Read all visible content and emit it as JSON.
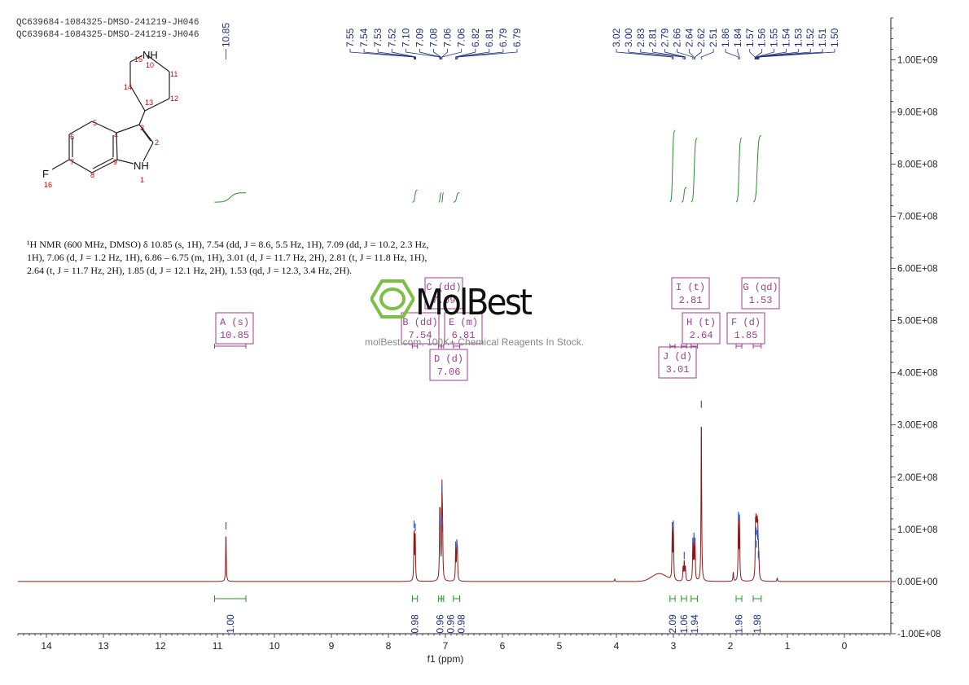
{
  "header": {
    "sample_line_1": "QC639684-1084325-DMSO-241219-JH046",
    "sample_line_2": "QC639684-1084325-DMSO-241219-JH046"
  },
  "description": {
    "line_1": "¹H NMR (600 MHz, DMSO) δ 10.85 (s, 1H), 7.54 (dd, J = 8.6, 5.5 Hz, 1H), 7.09 (dd, J = 10.2, 2.3 Hz,",
    "line_2": "1H), 7.06 (d, J = 1.2 Hz, 1H), 6.86 – 6.75 (m, 1H), 3.01 (d, J = 11.7 Hz, 2H), 2.81 (t, J = 11.8 Hz, 1H),",
    "line_3": "2.64 (t, J = 11.7 Hz, 2H), 1.85 (d, J = 12.1 Hz, 2H), 1.53 (qd, J = 12.3, 3.4 Hz, 2H)."
  },
  "watermark": {
    "brand": "MolBest",
    "tagline": "molBest.com, 100K+ Chemical Reagents In Stock."
  },
  "molecule": {
    "atoms": [
      {
        "symbol": "NH",
        "number": "10"
      },
      {
        "symbol": "NH",
        "number": "1"
      },
      {
        "symbol": "F",
        "number": "16"
      }
    ],
    "numbers": [
      "2",
      "3",
      "4",
      "5",
      "6",
      "7",
      "8",
      "9",
      "11",
      "12",
      "13",
      "14",
      "15"
    ]
  },
  "colors": {
    "spectrum": "#8b1a1a",
    "integral": "#2e8b2e",
    "peak_label": "#1f2f7a",
    "multiplet_box": "#9b3d8f",
    "watermark_green": "#7bc043",
    "atom_number": "#cc0000"
  },
  "chart_data": {
    "type": "line",
    "xlabel": "f1 (ppm)",
    "xlim": [
      14.5,
      -0.8
    ],
    "ylim": [
      -100000000.0,
      1080000000.0
    ],
    "x_ticks": [
      "14",
      "13",
      "12",
      "11",
      "10",
      "9",
      "8",
      "7",
      "6",
      "5",
      "4",
      "3",
      "2",
      "1",
      "0"
    ],
    "y_ticks": [
      "-1.00E+08",
      "0.00E+00",
      "1.00E+08",
      "2.00E+08",
      "3.00E+08",
      "4.00E+08",
      "5.00E+08",
      "6.00E+08",
      "7.00E+08",
      "8.00E+08",
      "9.00E+08",
      "1.00E+09"
    ],
    "peaks": [
      {
        "ppm": 10.85,
        "height": 95000000.0
      },
      {
        "ppm": 7.55,
        "height": 98000000.0
      },
      {
        "ppm": 7.53,
        "height": 92000000.0
      },
      {
        "ppm": 7.1,
        "height": 110000000.0
      },
      {
        "ppm": 7.09,
        "height": 105000000.0
      },
      {
        "ppm": 7.06,
        "height": 165000000.0
      },
      {
        "ppm": 7.05,
        "height": 90000000.0
      },
      {
        "ppm": 6.82,
        "height": 58000000.0
      },
      {
        "ppm": 6.8,
        "height": 62000000.0
      },
      {
        "ppm": 6.79,
        "height": 50000000.0
      },
      {
        "ppm": 4.03,
        "height": 5000000.0
      },
      {
        "ppm": 3.02,
        "height": 95000000.0
      },
      {
        "ppm": 3.0,
        "height": 98000000.0
      },
      {
        "ppm": 2.83,
        "height": 28000000.0
      },
      {
        "ppm": 2.81,
        "height": 38000000.0
      },
      {
        "ppm": 2.79,
        "height": 28000000.0
      },
      {
        "ppm": 2.66,
        "height": 65000000.0
      },
      {
        "ppm": 2.64,
        "height": 75000000.0
      },
      {
        "ppm": 2.62,
        "height": 65000000.0
      },
      {
        "ppm": 2.51,
        "height": 328000000.0
      },
      {
        "ppm": 1.95,
        "height": 18000000.0
      },
      {
        "ppm": 1.86,
        "height": 115000000.0
      },
      {
        "ppm": 1.84,
        "height": 110000000.0
      },
      {
        "ppm": 1.56,
        "height": 90000000.0
      },
      {
        "ppm": 1.55,
        "height": 85000000.0
      },
      {
        "ppm": 1.54,
        "height": 60000000.0
      },
      {
        "ppm": 1.53,
        "height": 80000000.0
      },
      {
        "ppm": 1.52,
        "height": 75000000.0
      },
      {
        "ppm": 1.51,
        "height": 40000000.0
      },
      {
        "ppm": 1.5,
        "height": 35000000.0
      },
      {
        "ppm": 1.18,
        "height": 7000000.0
      }
    ],
    "peak_labels": [
      {
        "group": [
          10.85
        ],
        "labels": [
          "10.85"
        ]
      },
      {
        "group": [
          7.55,
          7.54,
          7.53,
          7.52,
          7.1,
          7.09,
          7.08,
          7.06,
          7.06,
          6.82,
          6.81,
          6.79,
          6.79
        ],
        "labels": [
          "7.55",
          "7.54",
          "7.53",
          "7.52",
          "7.10",
          "7.09",
          "7.08",
          "7.06",
          "7.06",
          "6.82",
          "6.81",
          "6.79",
          "6.79"
        ]
      },
      {
        "group": [
          3.02,
          3.0,
          2.83,
          2.81,
          2.79,
          2.66,
          2.64,
          2.62,
          2.51,
          1.86,
          1.84,
          1.57,
          1.56,
          1.55,
          1.54,
          1.53,
          1.52,
          1.51,
          1.5
        ],
        "labels": [
          "3.02",
          "3.00",
          "2.83",
          "2.81",
          "2.79",
          "2.66",
          "2.64",
          "2.62",
          "2.51",
          "1.86",
          "1.84",
          "1.57",
          "1.56",
          "1.55",
          "1.54",
          "1.53",
          "1.52",
          "1.51",
          "1.50"
        ]
      }
    ],
    "integrations": [
      {
        "from": 11.05,
        "to": 10.5,
        "value": "1.00",
        "curve_height": 110000000.0
      },
      {
        "from": 7.58,
        "to": 7.49,
        "value": "0.98",
        "curve_height": 115000000.0
      },
      {
        "from": 7.12,
        "to": 7.07,
        "value": "0.96",
        "curve_height": 110000000.0
      },
      {
        "from": 7.07,
        "to": 7.03,
        "value": "0.96",
        "curve_height": 110000000.0
      },
      {
        "from": 6.86,
        "to": 6.75,
        "value": "0.98",
        "curve_height": 110000000.0
      },
      {
        "from": 3.06,
        "to": 2.97,
        "value": "2.09",
        "curve_height": 230000000.0
      },
      {
        "from": 2.86,
        "to": 2.77,
        "value": "1.06",
        "curve_height": 120000000.0
      },
      {
        "from": 2.69,
        "to": 2.58,
        "value": "1.94",
        "curve_height": 215000000.0
      },
      {
        "from": 1.9,
        "to": 1.8,
        "value": "1.96",
        "curve_height": 215000000.0
      },
      {
        "from": 1.6,
        "to": 1.46,
        "value": "1.98",
        "curve_height": 220000000.0
      }
    ],
    "multiplets": [
      {
        "letter": "A",
        "type": "(s)",
        "shift": "10.85",
        "range": [
          11.05,
          10.5
        ]
      },
      {
        "letter": "B",
        "type": "(dd)",
        "shift": "7.54",
        "range": [
          7.58,
          7.49
        ]
      },
      {
        "letter": "C",
        "type": "(dd)",
        "shift": "7.09",
        "range": [
          7.12,
          7.07
        ]
      },
      {
        "letter": "D",
        "type": "(d)",
        "shift": "7.06",
        "range": [
          7.07,
          7.03
        ]
      },
      {
        "letter": "E",
        "type": "(m)",
        "shift": "6.81",
        "range": [
          6.86,
          6.75
        ]
      },
      {
        "letter": "J",
        "type": "(d)",
        "shift": "3.01",
        "range": [
          3.06,
          2.97
        ]
      },
      {
        "letter": "I",
        "type": "(t)",
        "shift": "2.81",
        "range": [
          2.86,
          2.77
        ]
      },
      {
        "letter": "H",
        "type": "(t)",
        "shift": "2.64",
        "range": [
          2.69,
          2.58
        ]
      },
      {
        "letter": "F",
        "type": "(d)",
        "shift": "1.85",
        "range": [
          1.9,
          1.8
        ]
      },
      {
        "letter": "G",
        "type": "(qd)",
        "shift": "1.53",
        "range": [
          1.6,
          1.46
        ]
      }
    ]
  }
}
